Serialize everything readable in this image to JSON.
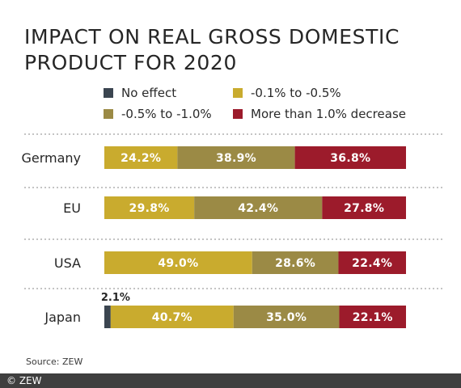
{
  "title": "IMPACT ON REAL GROSS DOMESTIC PRODUCT FOR 2020",
  "source": "Source: ZEW",
  "copyright": "© ZEW",
  "legend": [
    {
      "label": "No effect",
      "color": "#3b4550"
    },
    {
      "label": "-0.1% to -0.5%",
      "color": "#c9ab2e"
    },
    {
      "label": "-0.5% to -1.0%",
      "color": "#9b8a45"
    },
    {
      "label": "More than 1.0% decrease",
      "color": "#9c1b2b"
    }
  ],
  "chart_data": {
    "type": "bar",
    "orientation": "horizontal",
    "stacked": true,
    "categories": [
      "Germany",
      "EU",
      "USA",
      "Japan"
    ],
    "xlim": [
      0,
      100
    ],
    "grid": false,
    "legend_position": "top",
    "series": [
      {
        "name": "No effect",
        "color": "#3b4550",
        "values": [
          0,
          0,
          0,
          2.1
        ],
        "labels": [
          "",
          "",
          "",
          "2.1%"
        ]
      },
      {
        "name": "-0.1% to -0.5%",
        "color": "#c9ab2e",
        "values": [
          24.2,
          29.8,
          49.0,
          40.7
        ],
        "labels": [
          "24.2%",
          "29.8%",
          "49.0%",
          "40.7%"
        ]
      },
      {
        "name": "-0.5% to -1.0%",
        "color": "#9b8a45",
        "values": [
          38.9,
          42.4,
          28.6,
          35.0
        ],
        "labels": [
          "38.9%",
          "42.4%",
          "28.6%",
          "35.0%"
        ]
      },
      {
        "name": "More than 1.0% decrease",
        "color": "#9c1b2b",
        "values": [
          36.8,
          27.8,
          22.4,
          22.1
        ],
        "labels": [
          "36.8%",
          "27.8%",
          "22.4%",
          "22.1%"
        ]
      }
    ]
  }
}
